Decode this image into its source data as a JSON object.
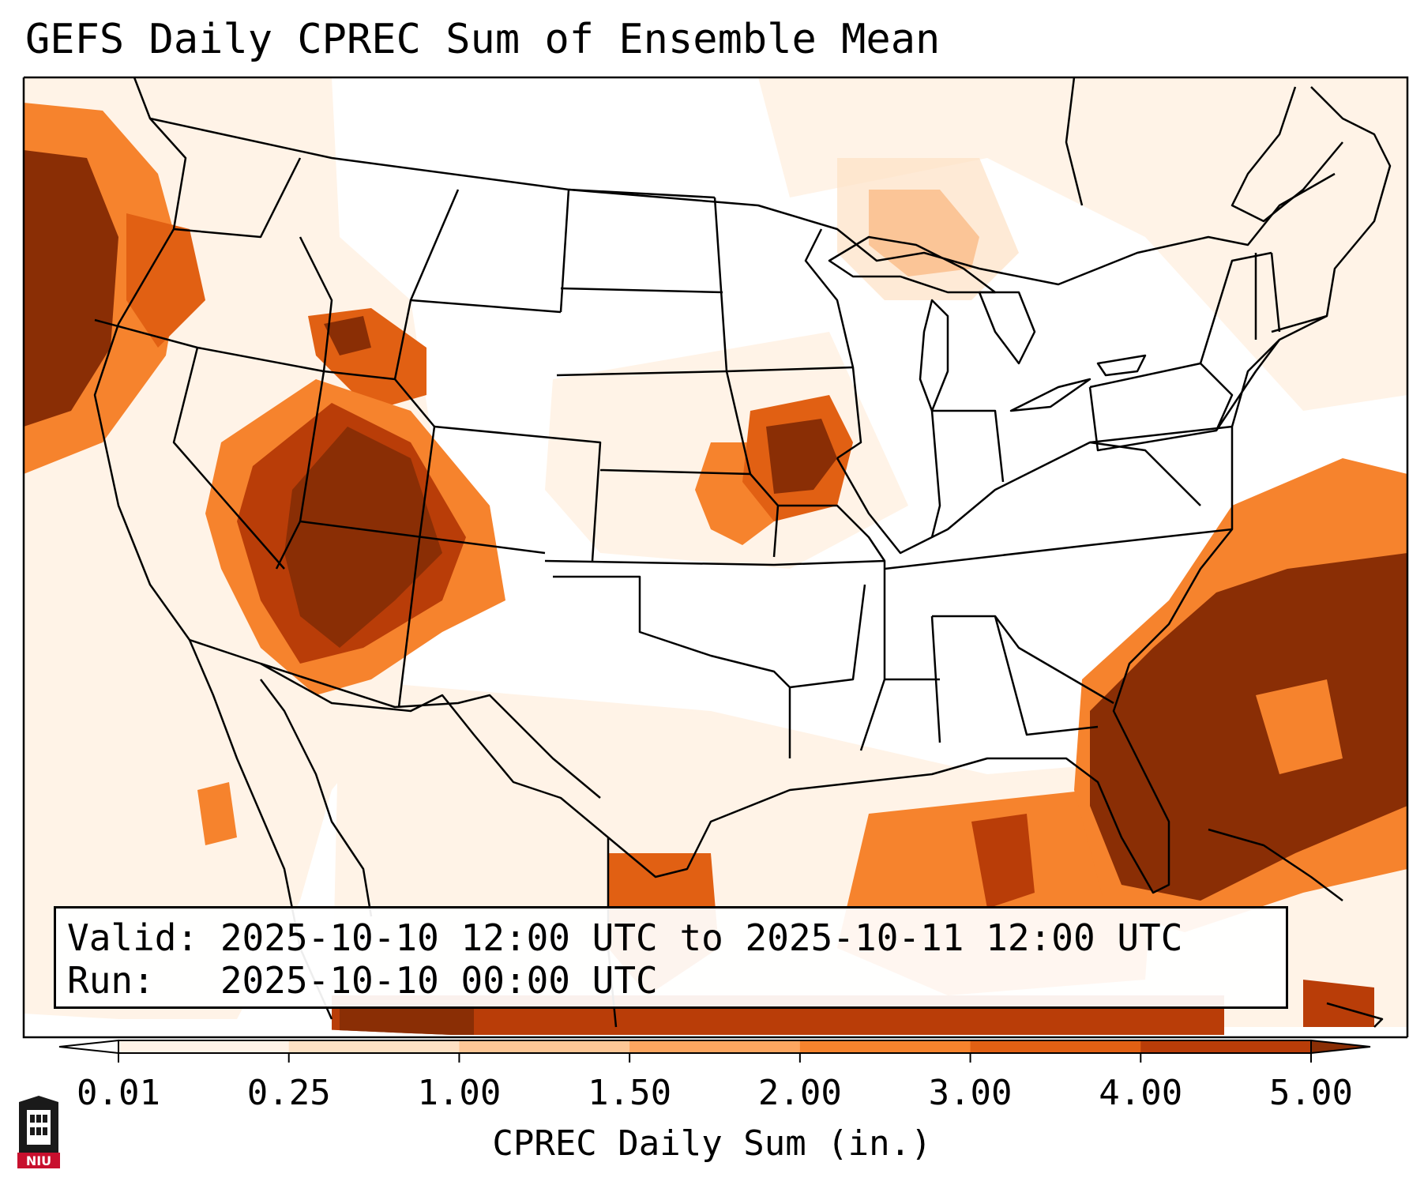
{
  "title": "GEFS Daily CPREC Sum of Ensemble Mean",
  "valid_box": {
    "valid_line": "Valid: 2025-10-10 12:00 UTC to 2025-10-11 12:00 UTC",
    "run_line": "Run:   2025-10-10 00:00 UTC"
  },
  "colorbar": {
    "label": "CPREC Daily Sum (in.)",
    "ticks": [
      "0.01",
      "0.25",
      "1.00",
      "1.50",
      "2.00",
      "3.00",
      "4.00",
      "5.00"
    ],
    "colors": [
      "#fff3e7",
      "#fde1c4",
      "#fdc796",
      "#fca660",
      "#f6832d",
      "#e16013",
      "#b93d08",
      "#8a2e05"
    ]
  },
  "logo": {
    "text": "NIU",
    "icon": "niu-logo-icon"
  },
  "map": {
    "region": "Continental United States",
    "background_color": "#ffffff",
    "border_color": "#000000"
  }
}
